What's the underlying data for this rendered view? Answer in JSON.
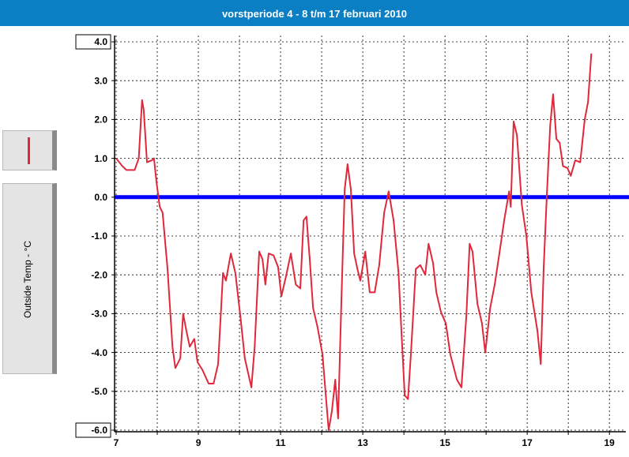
{
  "chart_data": {
    "type": "line",
    "title": "vorstperiode 4 - 8 t/m 17 februari 2010",
    "xlim": [
      7,
      19.4
    ],
    "xticks": [
      7,
      9,
      11,
      13,
      15,
      17,
      19
    ],
    "xminor_ticks": [
      8,
      10,
      12,
      14,
      16,
      18
    ],
    "ylim": [
      -6,
      4
    ],
    "yticks": [
      {
        "value": 4,
        "label": "4.0"
      },
      {
        "value": 3,
        "label": "3.0"
      },
      {
        "value": 2,
        "label": "2.0"
      },
      {
        "value": 1,
        "label": "1.0"
      },
      {
        "value": 0,
        "label": "0.0"
      },
      {
        "value": -1,
        "label": "-1.0"
      },
      {
        "value": -2,
        "label": "-2.0"
      },
      {
        "value": -3,
        "label": "-3.0"
      },
      {
        "value": -4,
        "label": "-4.0"
      },
      {
        "value": -5,
        "label": "-5.0"
      },
      {
        "value": -6,
        "label": "-6.0"
      }
    ],
    "grid": true,
    "reference_line": {
      "y": 0,
      "color": "#0000ff"
    },
    "series": [
      {
        "name": "Outside Temp - °C",
        "color": "#e0283c",
        "x": [
          7.0,
          7.15,
          7.25,
          7.45,
          7.55,
          7.63,
          7.67,
          7.75,
          7.87,
          7.92,
          7.98,
          8.06,
          8.13,
          8.25,
          8.37,
          8.44,
          8.56,
          8.63,
          8.71,
          8.79,
          8.9,
          8.98,
          9.1,
          9.25,
          9.37,
          9.48,
          9.6,
          9.67,
          9.79,
          9.9,
          10.02,
          10.13,
          10.29,
          10.37,
          10.48,
          10.56,
          10.63,
          10.71,
          10.83,
          10.94,
          11.02,
          11.13,
          11.25,
          11.37,
          11.48,
          11.56,
          11.63,
          11.71,
          11.79,
          11.9,
          12.02,
          12.1,
          12.17,
          12.25,
          12.33,
          12.4,
          12.48,
          12.56,
          12.63,
          12.71,
          12.79,
          12.87,
          12.94,
          13.06,
          13.17,
          13.29,
          13.4,
          13.52,
          13.63,
          13.75,
          13.87,
          13.94,
          14.02,
          14.1,
          14.17,
          14.29,
          14.4,
          14.52,
          14.6,
          14.71,
          14.79,
          14.9,
          15.02,
          15.13,
          15.29,
          15.4,
          15.52,
          15.6,
          15.67,
          15.79,
          15.9,
          15.98,
          16.1,
          16.21,
          16.33,
          16.44,
          16.56,
          16.6,
          16.67,
          16.75,
          16.87,
          16.98,
          17.1,
          17.25,
          17.33,
          17.4,
          17.48,
          17.56,
          17.63,
          17.71,
          17.79,
          17.87,
          17.98,
          18.06,
          18.17,
          18.29,
          18.4,
          18.48,
          18.56
        ],
        "values": [
          1.0,
          0.8,
          0.7,
          0.7,
          1.0,
          2.5,
          2.25,
          0.9,
          0.95,
          1.0,
          0.4,
          -0.25,
          -0.4,
          -1.85,
          -3.85,
          -4.4,
          -4.15,
          -3.0,
          -3.45,
          -3.85,
          -3.65,
          -4.25,
          -4.45,
          -4.8,
          -4.8,
          -4.3,
          -1.95,
          -2.15,
          -1.45,
          -1.95,
          -3.05,
          -4.15,
          -4.9,
          -3.85,
          -1.4,
          -1.6,
          -2.25,
          -1.45,
          -1.5,
          -1.8,
          -2.55,
          -2.05,
          -1.45,
          -2.25,
          -2.35,
          -0.6,
          -0.5,
          -1.6,
          -2.85,
          -3.35,
          -4.05,
          -5.1,
          -6.0,
          -5.5,
          -4.7,
          -5.7,
          -2.65,
          0.2,
          0.85,
          0.2,
          -1.45,
          -1.85,
          -2.15,
          -1.4,
          -2.45,
          -2.45,
          -1.75,
          -0.4,
          0.15,
          -0.6,
          -1.95,
          -3.45,
          -5.1,
          -5.2,
          -4.05,
          -1.85,
          -1.75,
          -2.0,
          -1.2,
          -1.7,
          -2.45,
          -2.95,
          -3.25,
          -4.05,
          -4.7,
          -4.9,
          -3.05,
          -1.2,
          -1.4,
          -2.75,
          -3.25,
          -4.0,
          -2.85,
          -2.25,
          -1.4,
          -0.6,
          0.15,
          -0.25,
          1.95,
          1.6,
          -0.2,
          -1.0,
          -2.45,
          -3.45,
          -4.3,
          -1.85,
          0.1,
          1.85,
          2.65,
          1.5,
          1.4,
          0.8,
          0.75,
          0.55,
          0.95,
          0.9,
          2.0,
          2.45,
          3.7
        ]
      }
    ]
  }
}
